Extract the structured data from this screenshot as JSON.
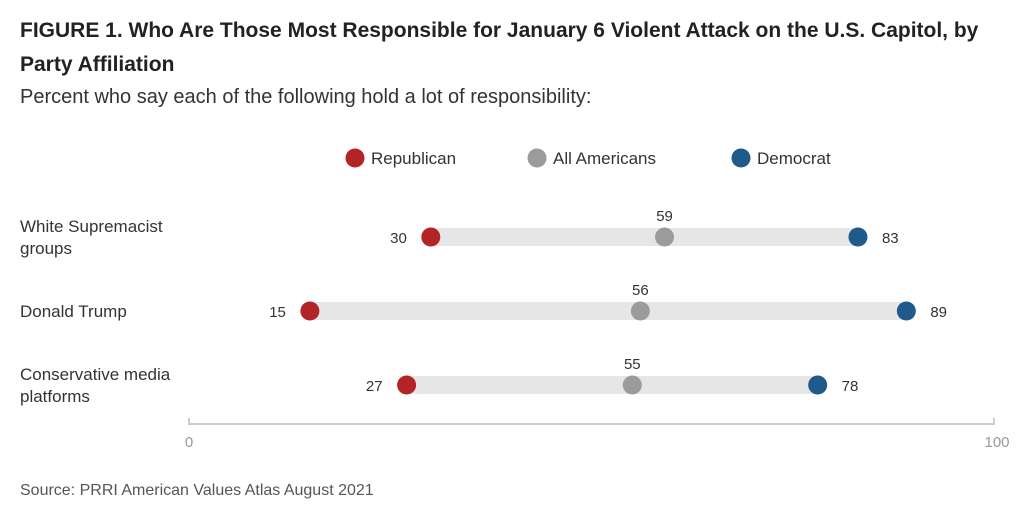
{
  "title_text": "FIGURE 1.  Who Are Those Most Responsible for January 6 Violent Attack on the U.S. Capitol, by Party Affiliation",
  "subtitle_text": "Percent who say each of the following hold a lot of responsibility:",
  "source_text": "Source: PRRI American Values Atlas August 2021",
  "colors": {
    "republican": "#b32428",
    "all_americans": "#9b9b9b",
    "democrat": "#1f5a8a",
    "range_bar": "#e6e6e6",
    "axis": "#cccccc"
  },
  "chart_data": {
    "type": "dot-range",
    "title": "FIGURE 1.  Who Are Those Most Responsible for January 6 Violent Attack on the U.S. Capitol, by Party Affiliation",
    "subtitle": "Percent who say each of the following hold a lot of responsibility:",
    "xlim": [
      0,
      100
    ],
    "x_ticks": [
      "0",
      "100"
    ],
    "legend_position": "top-center",
    "categories": [
      [
        "White Supremacist",
        "groups"
      ],
      [
        "Donald Trump"
      ],
      [
        "Conservative media",
        "platforms"
      ]
    ],
    "series": [
      {
        "name": "Republican",
        "key": "republican",
        "values": [
          30,
          15,
          27
        ]
      },
      {
        "name": "All Americans",
        "key": "all_americans",
        "values": [
          59,
          56,
          55
        ]
      },
      {
        "name": "Democrat",
        "key": "democrat",
        "values": [
          83,
          89,
          78
        ]
      }
    ]
  }
}
